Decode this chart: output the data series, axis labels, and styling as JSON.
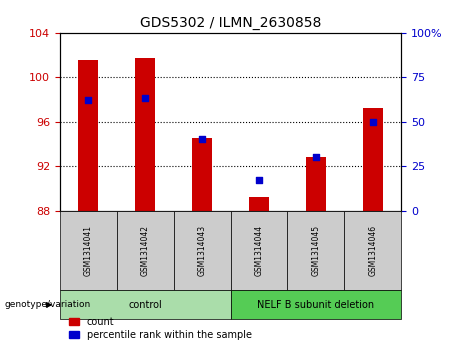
{
  "title": "GDS5302 / ILMN_2630858",
  "samples": [
    "GSM1314041",
    "GSM1314042",
    "GSM1314043",
    "GSM1314044",
    "GSM1314045",
    "GSM1314046"
  ],
  "count_values": [
    101.5,
    101.7,
    94.5,
    89.2,
    92.8,
    97.2
  ],
  "percentile_values": [
    62,
    63,
    40,
    17,
    30,
    50
  ],
  "ylim_left": [
    88,
    104
  ],
  "ylim_right": [
    0,
    100
  ],
  "yticks_left": [
    88,
    92,
    96,
    100,
    104
  ],
  "yticks_right": [
    0,
    25,
    50,
    75,
    100
  ],
  "ytick_labels_right": [
    "0",
    "25",
    "50",
    "75",
    "100%"
  ],
  "bar_color": "#cc0000",
  "dot_color": "#0000cc",
  "bar_width": 0.35,
  "dot_size": 25,
  "legend_items": [
    "count",
    "percentile rank within the sample"
  ],
  "genotype_label": "genotype/variation",
  "group_spans": [
    {
      "start": 0,
      "end": 2,
      "label": "control",
      "color": "#aaddaa"
    },
    {
      "start": 3,
      "end": 5,
      "label": "NELF B subunit deletion",
      "color": "#55cc55"
    }
  ],
  "grid_yticks": [
    92,
    96,
    100
  ],
  "xlabel_fontsize": 6,
  "title_fontsize": 10
}
